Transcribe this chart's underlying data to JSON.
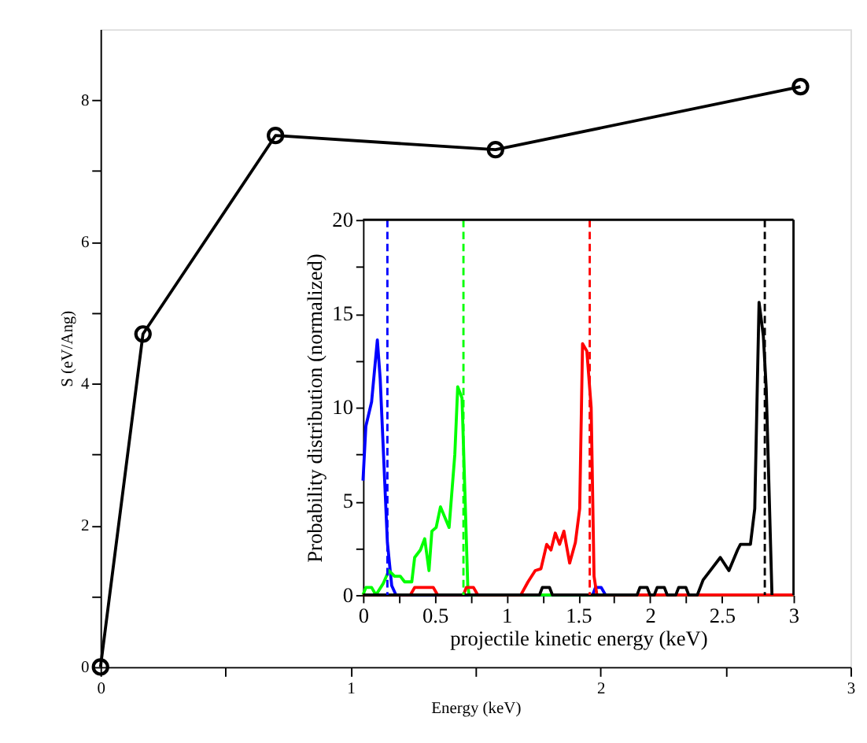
{
  "chart_data": [
    {
      "type": "line",
      "xlabel": "Energy (keV)",
      "ylabel": "S (eV/Ang)",
      "x": [
        0,
        0.17,
        0.7,
        1.58,
        2.8
      ],
      "values": [
        0,
        4.7,
        7.5,
        7.3,
        8.19
      ],
      "color": "#000000",
      "marker": "circle",
      "line_style": "solid",
      "xlim": [
        0,
        3
      ],
      "ylim": [
        0,
        9
      ],
      "xticks": [
        0,
        {
          "value": 0.5,
          "label": null
        },
        1,
        {
          "value": 1.5,
          "label": null
        },
        2,
        {
          "value": 2.5,
          "label": null
        },
        3
      ],
      "yticks": [
        0,
        {
          "value": 1,
          "label": null
        },
        2,
        {
          "value": 3,
          "label": null
        },
        4,
        {
          "value": 5,
          "label": null
        },
        6,
        {
          "value": 7,
          "label": null
        },
        8
      ],
      "grid": false
    },
    {
      "type": "line",
      "xlabel": "projectile kinetic energy (keV)",
      "ylabel": "Probability distribution (normalized)",
      "xlim": [
        0,
        3
      ],
      "ylim": [
        0,
        20
      ],
      "xticks": [
        0,
        {
          "value": 0.25,
          "label": null
        },
        0.5,
        {
          "value": 0.75,
          "label": null
        },
        1,
        {
          "value": 1.25,
          "label": null
        },
        1.5,
        {
          "value": 1.75,
          "label": null
        },
        2,
        {
          "value": 2.25,
          "label": null
        },
        2.5,
        {
          "value": 2.75,
          "label": null
        },
        3
      ],
      "yticks": [
        0,
        {
          "value": 2.5,
          "label": null
        },
        5,
        {
          "value": 7.5,
          "label": null
        },
        10,
        {
          "value": 12.5,
          "label": null
        },
        15,
        {
          "value": 17.5,
          "label": null
        },
        20
      ],
      "grid": false,
      "marker": "none",
      "line_style": "solid",
      "series": [
        {
          "color": "#0000ff",
          "x": [
            0,
            0.02,
            0.06,
            0.1,
            0.12,
            0.17,
            0.2,
            0.23,
            1.6,
            1.62,
            1.66,
            1.69,
            3
          ],
          "values": [
            6.1,
            9,
            10.3,
            13.6,
            11.5,
            2.8,
            0.5,
            0,
            0,
            0.4,
            0.4,
            0,
            0
          ]
        },
        {
          "color": "#00ff00",
          "x": [
            0,
            0.02,
            0.06,
            0.09,
            0.14,
            0.18,
            0.22,
            0.26,
            0.29,
            0.34,
            0.36,
            0.4,
            0.43,
            0.46,
            0.48,
            0.51,
            0.54,
            0.6,
            0.64,
            0.66,
            0.69,
            0.73,
            0.74,
            3
          ],
          "values": [
            0,
            0.4,
            0.4,
            0,
            0.6,
            1.3,
            1,
            1,
            0.7,
            0.7,
            2,
            2.4,
            3,
            1.3,
            3.4,
            3.6,
            4.7,
            3.6,
            7.5,
            11.1,
            10.5,
            0.5,
            0,
            0
          ]
        },
        {
          "color": "#ff0000",
          "x": [
            0,
            0.33,
            0.36,
            0.49,
            0.52,
            0.7,
            0.72,
            0.77,
            0.8,
            1.1,
            1.15,
            1.2,
            1.24,
            1.28,
            1.31,
            1.34,
            1.37,
            1.4,
            1.44,
            1.48,
            1.51,
            1.53,
            1.56,
            1.59,
            1.61,
            1.63,
            3
          ],
          "values": [
            0,
            0,
            0.4,
            0.4,
            0,
            0,
            0.4,
            0.4,
            0,
            0,
            0.7,
            1.3,
            1.4,
            2.7,
            2.4,
            3.3,
            2.7,
            3.4,
            1.7,
            2.8,
            4.6,
            13.4,
            13,
            10,
            1,
            0,
            0
          ]
        },
        {
          "color": "#000000",
          "x": [
            0,
            1.23,
            1.25,
            1.3,
            1.32,
            1.91,
            1.93,
            1.98,
            2,
            2.03,
            2.05,
            2.1,
            2.12,
            2.18,
            2.2,
            2.25,
            2.27,
            2.33,
            2.37,
            2.43,
            2.49,
            2.55,
            2.61,
            2.63,
            2.7,
            2.73,
            2.76,
            2.79,
            2.81,
            2.85
          ],
          "values": [
            0,
            0,
            0.4,
            0.4,
            0,
            0,
            0.4,
            0.4,
            0,
            0,
            0.4,
            0.4,
            0,
            0,
            0.4,
            0.4,
            0,
            0,
            0.8,
            1.4,
            2,
            1.3,
            2.4,
            2.7,
            2.7,
            4.6,
            15.6,
            13.8,
            11,
            0
          ]
        }
      ],
      "ref_lines": [
        {
          "axis": "x",
          "value": 0.17,
          "color": "#0000ff",
          "line_style": "dashed"
        },
        {
          "axis": "x",
          "value": 0.7,
          "color": "#00ff00",
          "line_style": "dashed"
        },
        {
          "axis": "x",
          "value": 1.58,
          "color": "#ff0000",
          "line_style": "dashed"
        },
        {
          "axis": "x",
          "value": 2.8,
          "color": "#000000",
          "line_style": "dashed"
        }
      ]
    }
  ]
}
